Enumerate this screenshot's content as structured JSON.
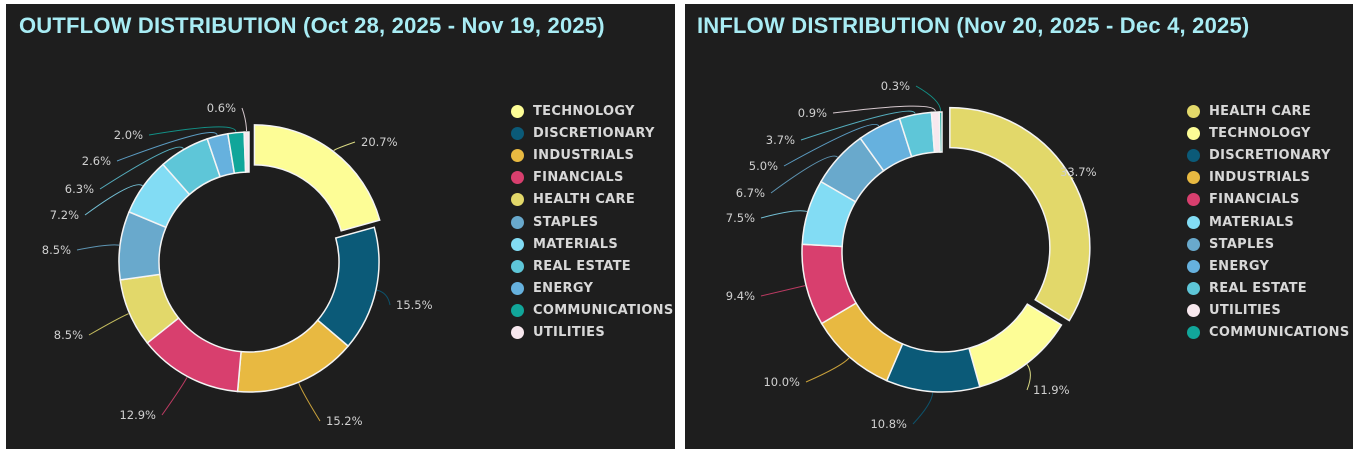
{
  "colors": {
    "TECHNOLOGY": "#fdfd96",
    "DISCRETIONARY": "#0b5a78",
    "INDUSTRIALS": "#e8b941",
    "FINANCIALS": "#d83f6e",
    "HEALTH CARE": "#e2d86a",
    "STAPLES": "#69a9cc",
    "MATERIALS": "#82dcf4",
    "REAL ESTATE": "#5ec6d8",
    "ENERGY": "#66b1de",
    "COMMUNICATIONS": "#11a69a",
    "UTILITIES": "#f8e8ee"
  },
  "panels": [
    {
      "title": "OUTFLOW DISTRIBUTION (Oct 28, 2025 - Nov 19, 2025)",
      "legend": [
        "TECHNOLOGY",
        "DISCRETIONARY",
        "INDUSTRIALS",
        "FINANCIALS",
        "HEALTH CARE",
        "STAPLES",
        "MATERIALS",
        "REAL ESTATE",
        "ENERGY",
        "COMMUNICATIONS",
        "UTILITIES"
      ]
    },
    {
      "title": "INFLOW DISTRIBUTION (Nov 20, 2025 - Dec 4, 2025)",
      "legend": [
        "HEALTH CARE",
        "TECHNOLOGY",
        "DISCRETIONARY",
        "INDUSTRIALS",
        "FINANCIALS",
        "MATERIALS",
        "STAPLES",
        "ENERGY",
        "REAL ESTATE",
        "UTILITIES",
        "COMMUNICATIONS"
      ]
    }
  ],
  "chart_data": [
    {
      "type": "pie",
      "variant": "donut",
      "title": "OUTFLOW DISTRIBUTION (Oct 28, 2025 - Nov 19, 2025)",
      "categories": [
        "TECHNOLOGY",
        "DISCRETIONARY",
        "INDUSTRIALS",
        "FINANCIALS",
        "HEALTH CARE",
        "STAPLES",
        "MATERIALS",
        "REAL ESTATE",
        "ENERGY",
        "COMMUNICATIONS",
        "UTILITIES"
      ],
      "values": [
        20.7,
        15.5,
        15.2,
        12.9,
        8.5,
        8.5,
        7.2,
        6.3,
        2.6,
        2.0,
        0.6
      ],
      "labels": [
        "20.7%",
        "15.5%",
        "15.2%",
        "12.9%",
        "8.5%",
        "8.5%",
        "7.2%",
        "6.3%",
        "2.6%",
        "2.0%",
        "0.6%"
      ],
      "exploded": "TECHNOLOGY",
      "legend_position": "right"
    },
    {
      "type": "pie",
      "variant": "donut",
      "title": "INFLOW DISTRIBUTION (Nov 20, 2025 - Dec 4, 2025)",
      "categories": [
        "HEALTH CARE",
        "TECHNOLOGY",
        "DISCRETIONARY",
        "INDUSTRIALS",
        "FINANCIALS",
        "MATERIALS",
        "STAPLES",
        "ENERGY",
        "REAL ESTATE",
        "UTILITIES",
        "COMMUNICATIONS"
      ],
      "values": [
        33.7,
        11.9,
        10.8,
        10.0,
        9.4,
        7.5,
        6.7,
        5.0,
        3.7,
        0.9,
        0.3
      ],
      "labels": [
        "33.7%",
        "11.9%",
        "10.8%",
        "10.0%",
        "9.4%",
        "7.5%",
        "6.7%",
        "5.0%",
        "3.7%",
        "0.9%",
        "0.3%"
      ],
      "exploded": "HEALTH CARE",
      "legend_position": "right"
    }
  ]
}
